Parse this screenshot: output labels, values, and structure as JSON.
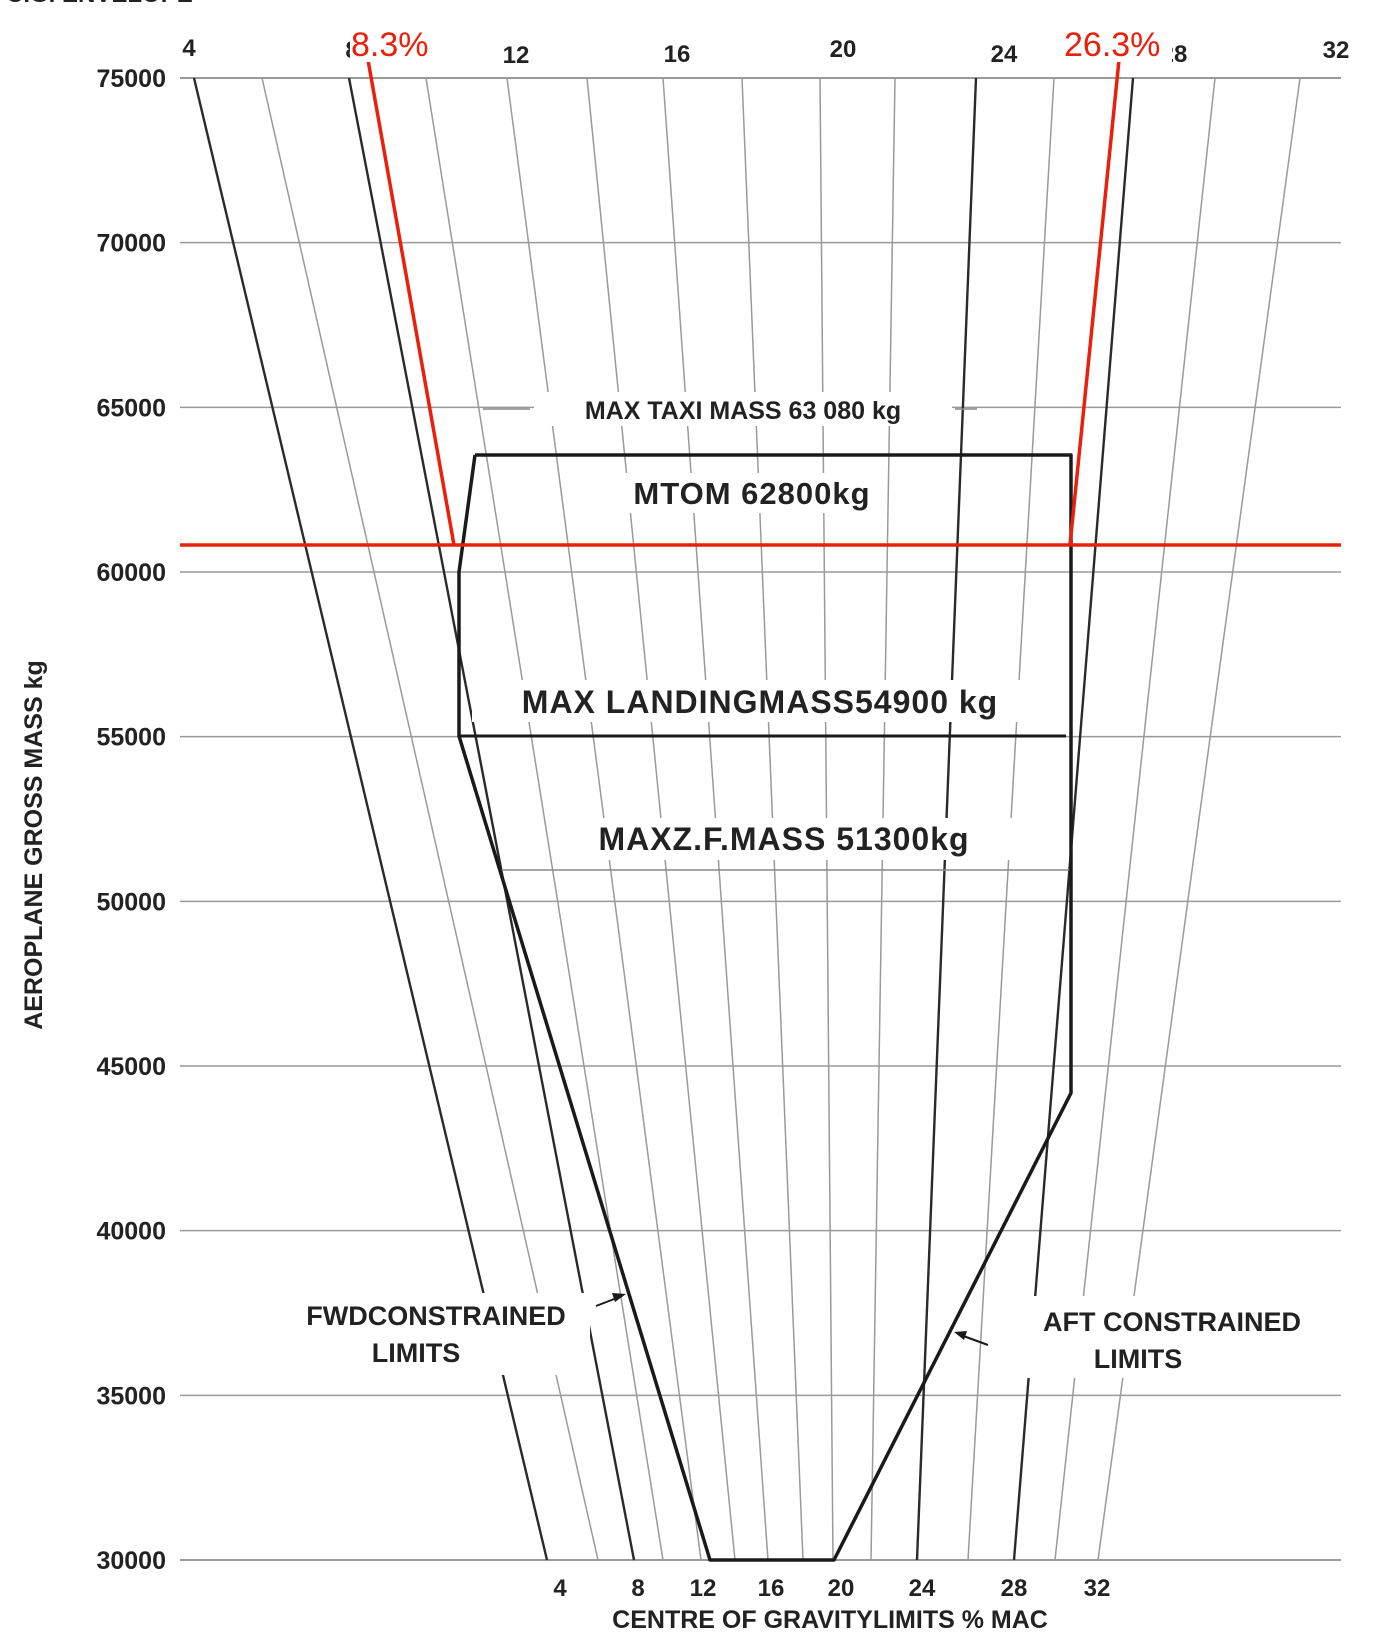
{
  "chart_data": {
    "type": "line",
    "title": "C.G. ENVELOPE",
    "xlabel": "CENTRE OF GRAVITYLIMITS % MAC",
    "ylabel": "AEROPLANE GROSS MASS kg",
    "ylim": [
      30000,
      75000
    ],
    "y_ticks": [
      "75000",
      "70000",
      "65000",
      "60000",
      "55000",
      "50000",
      "45000",
      "40000",
      "35000",
      "30000"
    ],
    "x_ticks_top": [
      "4",
      "8",
      "12",
      "16",
      "20",
      "24",
      "28",
      "32"
    ],
    "x_ticks_bottom": [
      "4",
      "8",
      "12",
      "16",
      "20",
      "24",
      "28",
      "32"
    ],
    "grid": true,
    "mass_limits": [
      {
        "label": "MAX TAXI MASS 63 080 kg",
        "mass": 63080
      },
      {
        "label": "MTOM 62800kg",
        "mass": 62800
      },
      {
        "label": "MAX LANDINGMASS54900 kg",
        "mass": 54900
      },
      {
        "label": "MAXZ.F.MASS 51300kg",
        "mass": 51300
      }
    ],
    "envelope": [
      {
        "cg": 11,
        "mass": 63600
      },
      {
        "cg": 26,
        "mass": 63600
      },
      {
        "cg": 26,
        "mass": 44100
      },
      {
        "cg": 19.6,
        "mass": 30000
      },
      {
        "cg": 13,
        "mass": 30000
      },
      {
        "cg": 10.7,
        "mass": 55000
      },
      {
        "cg": 10.7,
        "mass": 60100
      },
      {
        "cg": 11,
        "mass": 63600
      }
    ],
    "fwd_constrained_label": [
      "FWDCONSTRAINED",
      "LIMITS"
    ],
    "aft_constrained_label": [
      "AFT CONSTRAINED",
      "LIMITS"
    ],
    "annotation": {
      "mass": 60700,
      "fwd_value": "8.3%",
      "aft_value": "26.3%"
    },
    "colors": {
      "annotation": "#e8200c",
      "envelope": "#1a1a1a",
      "grid": "#9a9a9a"
    }
  }
}
